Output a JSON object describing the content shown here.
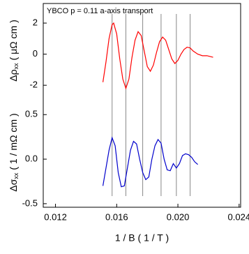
{
  "chart_data": [
    {
      "type": "line",
      "annotation": "YBCO p = 0.11 a-axis transport",
      "ylabel": {
        "symbol": "Δρ",
        "subscript": "xx",
        "unit": "( μΩ cm )"
      },
      "ylim": [
        -2.8,
        3.26
      ],
      "yticks": [
        -2,
        0,
        2
      ],
      "xlim": [
        0.0112,
        0.0241
      ],
      "vertical_lines": [
        0.0157,
        0.0166,
        0.0177,
        0.0189,
        0.0199,
        0.0208
      ],
      "series": [
        {
          "name": "Δρxx",
          "color": "#ff0000",
          "x": [
            0.0151,
            0.0153,
            0.0155,
            0.0157,
            0.0158,
            0.016,
            0.0162,
            0.0164,
            0.0166,
            0.0168,
            0.017,
            0.0172,
            0.0174,
            0.0176,
            0.0178,
            0.018,
            0.0182,
            0.0184,
            0.0186,
            0.0188,
            0.019,
            0.0192,
            0.0194,
            0.0196,
            0.0198,
            0.02,
            0.0202,
            0.0204,
            0.0206,
            0.0208,
            0.021,
            0.0213,
            0.0216,
            0.0219,
            0.0223
          ],
          "values": [
            -1.8,
            -0.5,
            1.0,
            1.9,
            2.0,
            1.3,
            -0.3,
            -1.6,
            -2.2,
            -1.6,
            -0.2,
            0.9,
            1.45,
            1.2,
            0.2,
            -0.8,
            -1.1,
            -0.7,
            0.1,
            0.8,
            1.1,
            0.9,
            0.3,
            -0.3,
            -0.6,
            -0.4,
            0.0,
            0.3,
            0.45,
            0.4,
            0.2,
            0.0,
            -0.1,
            -0.1,
            -0.2
          ]
        }
      ]
    },
    {
      "type": "line",
      "ylabel": {
        "symbol": "Δσ",
        "subscript": "xx",
        "unit": "( 1 / mΩ cm )"
      },
      "xlabel": "1 / B ( 1 / T )",
      "ylim": [
        -0.54,
        0.69
      ],
      "yticks": [
        -0.5,
        {
          "value": 0,
          "label": "0.0"
        },
        0.5
      ],
      "xlim": [
        0.0112,
        0.0241
      ],
      "xticks": [
        0.012,
        0.016,
        {
          "value": 0.02,
          "label": "0.020"
        },
        0.024
      ],
      "series": [
        {
          "name": "Δσxx",
          "color": "#0000cc",
          "x": [
            0.0151,
            0.0153,
            0.0155,
            0.0157,
            0.0159,
            0.0161,
            0.0163,
            0.0165,
            0.0167,
            0.0169,
            0.0171,
            0.0173,
            0.0175,
            0.0177,
            0.0179,
            0.0181,
            0.0183,
            0.0185,
            0.0187,
            0.0189,
            0.0191,
            0.0193,
            0.0195,
            0.0197,
            0.0199,
            0.0201,
            0.0203,
            0.0205,
            0.0207,
            0.0209,
            0.0211,
            0.0213
          ],
          "values": [
            -0.3,
            -0.1,
            0.1,
            0.24,
            0.15,
            -0.15,
            -0.31,
            -0.3,
            -0.1,
            0.1,
            0.2,
            0.17,
            0.0,
            -0.15,
            -0.23,
            -0.2,
            0.0,
            0.15,
            0.22,
            0.18,
            0.0,
            -0.12,
            -0.13,
            -0.05,
            -0.1,
            -0.05,
            0.04,
            0.06,
            0.05,
            0.02,
            -0.03,
            -0.06
          ]
        }
      ]
    }
  ]
}
